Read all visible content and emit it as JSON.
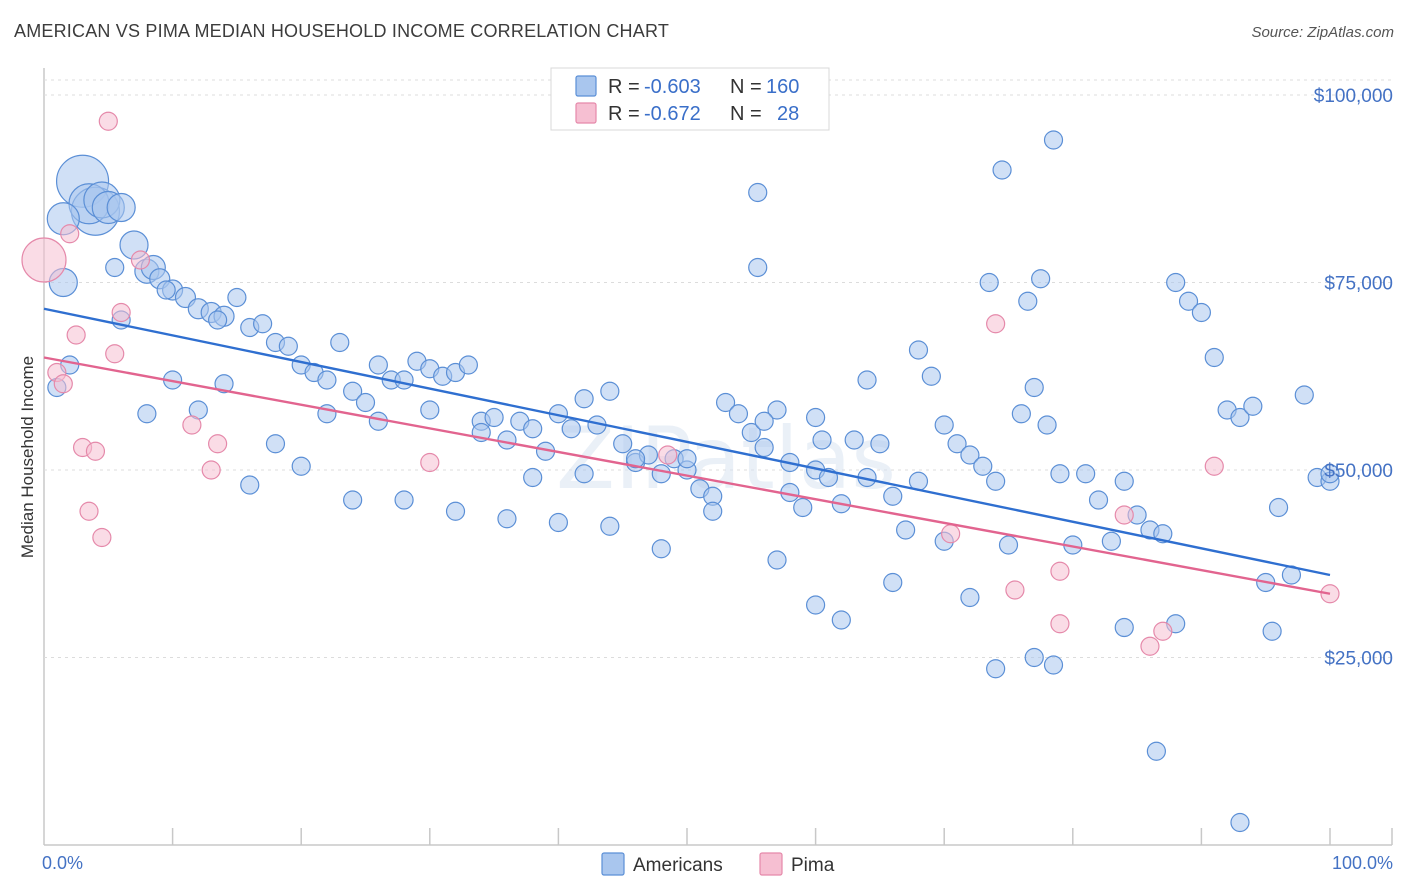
{
  "title": "AMERICAN VS PIMA MEDIAN HOUSEHOLD INCOME CORRELATION CHART",
  "source": "Source: ZipAtlas.com",
  "watermark": "ZIPatlas",
  "chart_data": {
    "type": "scatter",
    "title": "AMERICAN VS PIMA MEDIAN HOUSEHOLD INCOME CORRELATION CHART",
    "xlabel": "",
    "ylabel": "Median Household Income",
    "xlim": [
      0,
      100
    ],
    "ylim": [
      0,
      102000
    ],
    "x_tick_labels": {
      "min": "0.0%",
      "max": "100.0%"
    },
    "y_ticks": [
      {
        "value": 25000,
        "label": "$25,000"
      },
      {
        "value": 50000,
        "label": "$50,000"
      },
      {
        "value": 75000,
        "label": "$75,000"
      },
      {
        "value": 100000,
        "label": "$100,000"
      }
    ],
    "grid": true,
    "legend_position": "bottom-center",
    "stats": [
      {
        "r_label": "R =",
        "r": "-0.603",
        "n_label": "N =",
        "n": "160"
      },
      {
        "r_label": "R =",
        "r": "-0.672",
        "n_label": "N =",
        "n": "28"
      }
    ],
    "series": [
      {
        "name": "Americans",
        "color": "#a9c6ee",
        "stroke": "#5b8fd6",
        "line_color": "#2f6fd0",
        "trend": [
          [
            0,
            71500
          ],
          [
            100,
            36000
          ]
        ],
        "points": [
          [
            3.0,
            88.5,
            26
          ],
          [
            4.0,
            84.5,
            24
          ],
          [
            3.5,
            85.5,
            20
          ],
          [
            4.5,
            86.0,
            18
          ],
          [
            5.0,
            85.0,
            16
          ],
          [
            1.5,
            83.5,
            16
          ],
          [
            6.0,
            85.0,
            14
          ],
          [
            7.0,
            80.0,
            14
          ],
          [
            1.5,
            75.0,
            14
          ],
          [
            8.0,
            76.5,
            12
          ],
          [
            8.5,
            77.0,
            12
          ],
          [
            9.0,
            75.5,
            10
          ],
          [
            10.0,
            74.0,
            10
          ],
          [
            11.0,
            73.0,
            10
          ],
          [
            12.0,
            71.5,
            10
          ],
          [
            13.0,
            71.0,
            10
          ],
          [
            14.0,
            70.5,
            10
          ],
          [
            15.0,
            73.0,
            9
          ],
          [
            16.0,
            69.0,
            9
          ],
          [
            17.0,
            69.5,
            9
          ],
          [
            18.0,
            67.0,
            9
          ],
          [
            19.0,
            66.5,
            9
          ],
          [
            20.0,
            64.0,
            9
          ],
          [
            21.0,
            63.0,
            9
          ],
          [
            22.0,
            62.0,
            9
          ],
          [
            23.0,
            67.0,
            9
          ],
          [
            24.0,
            60.5,
            9
          ],
          [
            25.0,
            59.0,
            9
          ],
          [
            26.0,
            64.0,
            9
          ],
          [
            27.0,
            62.0,
            9
          ],
          [
            28.0,
            62.0,
            9
          ],
          [
            29.0,
            64.5,
            9
          ],
          [
            30.0,
            63.5,
            9
          ],
          [
            31.0,
            62.5,
            9
          ],
          [
            32.0,
            63.0,
            9
          ],
          [
            33.0,
            64.0,
            9
          ],
          [
            34.0,
            56.5,
            9
          ],
          [
            35.0,
            57.0,
            9
          ],
          [
            36.0,
            54.0,
            9
          ],
          [
            37.0,
            56.5,
            9
          ],
          [
            38.0,
            55.5,
            9
          ],
          [
            39.0,
            52.5,
            9
          ],
          [
            40.0,
            57.5,
            9
          ],
          [
            41.0,
            55.5,
            9
          ],
          [
            42.0,
            59.5,
            9
          ],
          [
            43.0,
            56.0,
            9
          ],
          [
            44.0,
            60.5,
            9
          ],
          [
            45.0,
            53.5,
            9
          ],
          [
            46.0,
            51.0,
            9
          ],
          [
            47.0,
            52.0,
            9
          ],
          [
            48.0,
            49.5,
            9
          ],
          [
            49.0,
            51.5,
            9
          ],
          [
            50.0,
            50.0,
            9
          ],
          [
            51.0,
            47.5,
            9
          ],
          [
            52.0,
            46.5,
            9
          ],
          [
            53.0,
            59.0,
            9
          ],
          [
            54.0,
            57.5,
            9
          ],
          [
            55.0,
            55.0,
            9
          ],
          [
            56.0,
            53.0,
            9
          ],
          [
            57.0,
            58.0,
            9
          ],
          [
            58.0,
            47.0,
            9
          ],
          [
            59.0,
            45.0,
            9
          ],
          [
            60.0,
            50.0,
            9
          ],
          [
            61.0,
            49.0,
            9
          ],
          [
            62.0,
            45.5,
            9
          ],
          [
            63.0,
            54.0,
            9
          ],
          [
            64.0,
            49.0,
            9
          ],
          [
            65.0,
            53.5,
            9
          ],
          [
            66.0,
            46.5,
            9
          ],
          [
            67.0,
            42.0,
            9
          ],
          [
            68.0,
            48.5,
            9
          ],
          [
            69.0,
            62.5,
            9
          ],
          [
            70.0,
            56.0,
            9
          ],
          [
            71.0,
            53.5,
            9
          ],
          [
            72.0,
            52.0,
            9
          ],
          [
            73.0,
            50.5,
            9
          ],
          [
            74.0,
            48.5,
            9
          ],
          [
            75.0,
            40.0,
            9
          ],
          [
            76.0,
            57.5,
            9
          ],
          [
            77.0,
            61.0,
            9
          ],
          [
            78.0,
            56.0,
            9
          ],
          [
            79.0,
            49.5,
            9
          ],
          [
            80.0,
            40.0,
            9
          ],
          [
            81.0,
            49.5,
            9
          ],
          [
            82.0,
            46.0,
            9
          ],
          [
            83.0,
            40.5,
            9
          ],
          [
            84.0,
            48.5,
            9
          ],
          [
            85.0,
            44.0,
            9
          ],
          [
            86.0,
            42.0,
            9
          ],
          [
            87.0,
            41.5,
            9
          ],
          [
            88.0,
            75.0,
            9
          ],
          [
            89.0,
            72.5,
            9
          ],
          [
            90.0,
            71.0,
            9
          ],
          [
            91.0,
            65.0,
            9
          ],
          [
            92.0,
            58.0,
            9
          ],
          [
            93.0,
            57.0,
            9
          ],
          [
            94.0,
            58.5,
            9
          ],
          [
            95.0,
            35.0,
            9
          ],
          [
            96.0,
            45.0,
            9
          ],
          [
            97.0,
            36.0,
            9
          ],
          [
            98.0,
            60.0,
            9
          ],
          [
            99.0,
            49.0,
            9
          ],
          [
            100.0,
            48.5,
            9
          ],
          [
            55.5,
            87.0,
            9
          ],
          [
            55.5,
            77.0,
            9
          ],
          [
            74.5,
            90.0,
            9
          ],
          [
            78.5,
            94.0,
            9
          ],
          [
            73.5,
            75.0,
            9
          ],
          [
            77.5,
            75.5,
            9
          ],
          [
            76.5,
            72.5,
            9
          ],
          [
            68.0,
            66.0,
            9
          ],
          [
            64.0,
            62.0,
            9
          ],
          [
            60.0,
            57.0,
            9
          ],
          [
            56.0,
            56.5,
            9
          ],
          [
            52.0,
            44.5,
            9
          ],
          [
            48.0,
            39.5,
            9
          ],
          [
            44.0,
            42.5,
            9
          ],
          [
            40.0,
            43.0,
            9
          ],
          [
            36.0,
            43.5,
            9
          ],
          [
            32.0,
            44.5,
            9
          ],
          [
            28.0,
            46.0,
            9
          ],
          [
            24.0,
            46.0,
            9
          ],
          [
            20.0,
            50.5,
            9
          ],
          [
            16.0,
            48.0,
            9
          ],
          [
            12.0,
            58.0,
            9
          ],
          [
            8.0,
            57.5,
            9
          ],
          [
            57.0,
            38.0,
            9
          ],
          [
            60.0,
            32.0,
            9
          ],
          [
            62.0,
            30.0,
            9
          ],
          [
            66.0,
            35.0,
            9
          ],
          [
            70.0,
            40.5,
            9
          ],
          [
            72.0,
            33.0,
            9
          ],
          [
            74.0,
            23.5,
            9
          ],
          [
            77.0,
            25.0,
            9
          ],
          [
            78.5,
            24.0,
            9
          ],
          [
            84.0,
            29.0,
            9
          ],
          [
            86.5,
            12.5,
            9
          ],
          [
            88.0,
            29.5,
            9
          ],
          [
            93.0,
            3.0,
            9
          ],
          [
            95.5,
            28.5,
            9
          ],
          [
            100.0,
            49.5,
            9
          ],
          [
            60.5,
            54.0,
            9
          ],
          [
            58.0,
            51.0,
            9
          ],
          [
            50.0,
            51.5,
            9
          ],
          [
            46.0,
            51.5,
            9
          ],
          [
            42.0,
            49.5,
            9
          ],
          [
            38.0,
            49.0,
            9
          ],
          [
            34.0,
            55.0,
            9
          ],
          [
            30.0,
            58.0,
            9
          ],
          [
            26.0,
            56.5,
            9
          ],
          [
            22.0,
            57.5,
            9
          ],
          [
            18.0,
            53.5,
            9
          ],
          [
            14.0,
            61.5,
            9
          ],
          [
            10.0,
            62.0,
            9
          ],
          [
            6.0,
            70.0,
            9
          ],
          [
            2.0,
            64.0,
            9
          ],
          [
            1.0,
            61.0,
            9
          ],
          [
            5.5,
            77.0,
            9
          ],
          [
            9.5,
            74.0,
            9
          ],
          [
            13.5,
            70.0,
            9
          ]
        ]
      },
      {
        "name": "Pima",
        "color": "#f6bfd2",
        "stroke": "#e589aa",
        "line_color": "#e2648f",
        "trend": [
          [
            0,
            65000
          ],
          [
            100,
            33500
          ]
        ],
        "points": [
          [
            0.0,
            78.0,
            22
          ],
          [
            2.0,
            81.5,
            9
          ],
          [
            5.0,
            96.5,
            9
          ],
          [
            7.5,
            78.0,
            9
          ],
          [
            6.0,
            71.0,
            9
          ],
          [
            1.0,
            63.0,
            9
          ],
          [
            1.5,
            61.5,
            9
          ],
          [
            2.5,
            68.0,
            9
          ],
          [
            5.5,
            65.5,
            9
          ],
          [
            3.0,
            53.0,
            9
          ],
          [
            4.0,
            52.5,
            9
          ],
          [
            3.5,
            44.5,
            9
          ],
          [
            4.5,
            41.0,
            9
          ],
          [
            11.5,
            56.0,
            9
          ],
          [
            13.0,
            50.0,
            9
          ],
          [
            13.5,
            53.5,
            9
          ],
          [
            30.0,
            51.0,
            9
          ],
          [
            48.5,
            52.0,
            9
          ],
          [
            74.0,
            69.5,
            9
          ],
          [
            75.5,
            34.0,
            9
          ],
          [
            79.0,
            36.5,
            9
          ],
          [
            79.0,
            29.5,
            9
          ],
          [
            84.0,
            44.0,
            9
          ],
          [
            86.0,
            26.5,
            9
          ],
          [
            87.0,
            28.5,
            9
          ],
          [
            91.0,
            50.5,
            9
          ],
          [
            100.0,
            33.5,
            9
          ],
          [
            70.5,
            41.5,
            9
          ]
        ]
      }
    ]
  }
}
